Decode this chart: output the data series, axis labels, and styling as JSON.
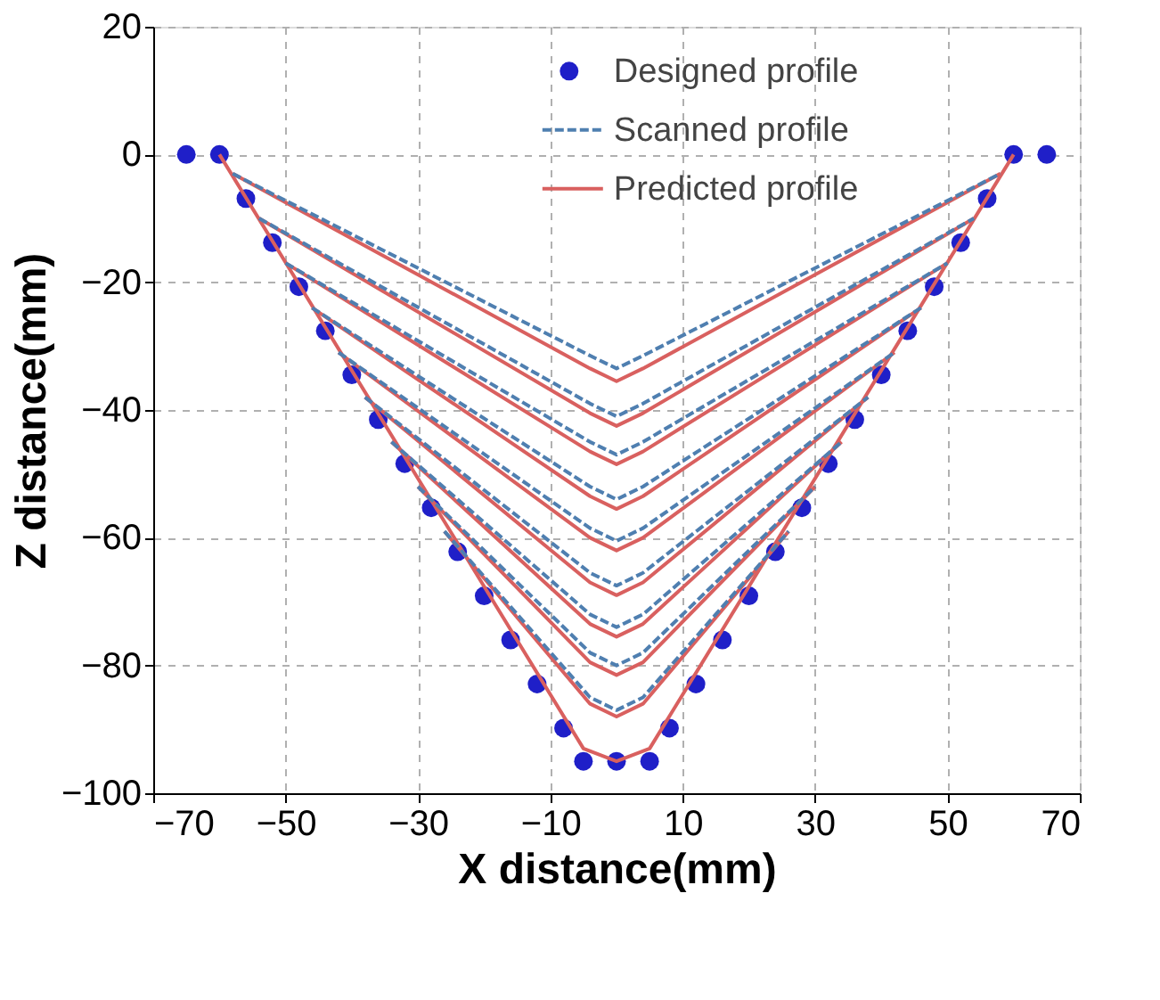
{
  "chart_data": {
    "type": "line",
    "xlabel": "X distance(mm)",
    "ylabel": "Z distance(mm)",
    "xlim": [
      -70,
      70
    ],
    "xticks": [
      -70,
      -50,
      -30,
      -10,
      10,
      30,
      50,
      70
    ],
    "ylim": [
      -100,
      20
    ],
    "yticks": [
      -100,
      -80,
      -60,
      -40,
      -20,
      0,
      20
    ],
    "grid": true,
    "legend": "top",
    "series": [
      {
        "name": "Designed profile",
        "type": "scatter",
        "marker": "circle",
        "color": "#1f1fc8",
        "x": [
          -65,
          -60,
          -56,
          -52,
          -48,
          -44,
          -40,
          -36,
          -32,
          -28,
          -24,
          -20,
          -16,
          -12,
          -8,
          -5,
          0,
          5,
          8,
          12,
          16,
          20,
          24,
          28,
          32,
          36,
          40,
          44,
          48,
          52,
          56,
          60,
          65
        ],
        "values": [
          0,
          0,
          -6.9,
          -13.8,
          -20.7,
          -27.6,
          -34.5,
          -41.5,
          -48.4,
          -55.3,
          -62.2,
          -69.1,
          -76,
          -82.9,
          -89.8,
          -95,
          -95,
          -95,
          -89.8,
          -82.9,
          -76,
          -69.1,
          -62.2,
          -55.3,
          -48.4,
          -41.5,
          -34.5,
          -27.6,
          -20.7,
          -13.8,
          -6.9,
          0,
          0
        ]
      },
      {
        "name": "Scanned profile",
        "type": "line",
        "line_style": "dashed",
        "color": "#4f7fb0",
        "x": [
          -58,
          -4,
          0,
          4,
          58
        ],
        "values": [
          -3,
          -31.5,
          -33.5,
          -31.5,
          -3
        ]
      },
      {
        "line_style": "dashed",
        "color": "#4f7fb0",
        "x": [
          -54,
          -4,
          0,
          4,
          54
        ],
        "values": [
          -10,
          -39,
          -41,
          -39,
          -10
        ]
      },
      {
        "line_style": "dashed",
        "color": "#4f7fb0",
        "x": [
          -50,
          -4,
          0,
          4,
          50
        ],
        "values": [
          -17,
          -45,
          -47,
          -45,
          -17
        ]
      },
      {
        "line_style": "dashed",
        "color": "#4f7fb0",
        "x": [
          -46,
          -4,
          0,
          4,
          46
        ],
        "values": [
          -24,
          -52,
          -54,
          -52,
          -24
        ]
      },
      {
        "line_style": "dashed",
        "color": "#4f7fb0",
        "x": [
          -42,
          -4,
          0,
          4,
          42
        ],
        "values": [
          -31,
          -58.5,
          -60.5,
          -58.5,
          -31
        ]
      },
      {
        "line_style": "dashed",
        "color": "#4f7fb0",
        "x": [
          -38,
          -4,
          0,
          4,
          38
        ],
        "values": [
          -38,
          -65.5,
          -67.5,
          -65.5,
          -38
        ]
      },
      {
        "line_style": "dashed",
        "color": "#4f7fb0",
        "x": [
          -34,
          -4,
          0,
          4,
          34
        ],
        "values": [
          -45,
          -72,
          -74,
          -72,
          -45
        ]
      },
      {
        "line_style": "dashed",
        "color": "#4f7fb0",
        "x": [
          -30,
          -4,
          0,
          4,
          30
        ],
        "values": [
          -52,
          -78,
          -80,
          -78,
          -52
        ]
      },
      {
        "line_style": "dashed",
        "color": "#4f7fb0",
        "x": [
          -26,
          -4,
          0,
          4,
          26
        ],
        "values": [
          -59,
          -85,
          -87,
          -85,
          -59
        ]
      },
      {
        "name": "Predicted profile",
        "type": "line",
        "line_style": "solid",
        "color": "#d9605f",
        "x": [
          -58,
          -4,
          0,
          4,
          58
        ],
        "values": [
          -3,
          -33.5,
          -35.5,
          -33.5,
          -3
        ]
      },
      {
        "line_style": "solid",
        "color": "#d9605f",
        "x": [
          -54,
          -4,
          0,
          4,
          54
        ],
        "values": [
          -10,
          -40.5,
          -42.5,
          -40.5,
          -10
        ]
      },
      {
        "line_style": "solid",
        "color": "#d9605f",
        "x": [
          -50,
          -4,
          0,
          4,
          50
        ],
        "values": [
          -17,
          -46.5,
          -48.5,
          -46.5,
          -17
        ]
      },
      {
        "line_style": "solid",
        "color": "#d9605f",
        "x": [
          -46,
          -4,
          0,
          4,
          46
        ],
        "values": [
          -24,
          -53.5,
          -55.5,
          -53.5,
          -24
        ]
      },
      {
        "line_style": "solid",
        "color": "#d9605f",
        "x": [
          -42,
          -4,
          0,
          4,
          42
        ],
        "values": [
          -31,
          -60,
          -62,
          -60,
          -31
        ]
      },
      {
        "line_style": "solid",
        "color": "#d9605f",
        "x": [
          -38,
          -4,
          0,
          4,
          38
        ],
        "values": [
          -38,
          -67,
          -69,
          -67,
          -38
        ]
      },
      {
        "line_style": "solid",
        "color": "#d9605f",
        "x": [
          -34,
          -4,
          0,
          4,
          34
        ],
        "values": [
          -45,
          -73.5,
          -75.5,
          -73.5,
          -45
        ]
      },
      {
        "line_style": "solid",
        "color": "#d9605f",
        "x": [
          -30,
          -4,
          0,
          4,
          30
        ],
        "values": [
          -52,
          -79.5,
          -81.5,
          -79.5,
          -52
        ]
      },
      {
        "line_style": "solid",
        "color": "#d9605f",
        "x": [
          -26,
          -4,
          0,
          4,
          26
        ],
        "values": [
          -59,
          -86,
          -88,
          -86,
          -59
        ]
      },
      {
        "line_style": "solid",
        "color": "#d9605f",
        "x": [
          -60,
          -5,
          0,
          5,
          60
        ],
        "values": [
          0,
          -93,
          -95,
          -93,
          0
        ]
      }
    ]
  }
}
